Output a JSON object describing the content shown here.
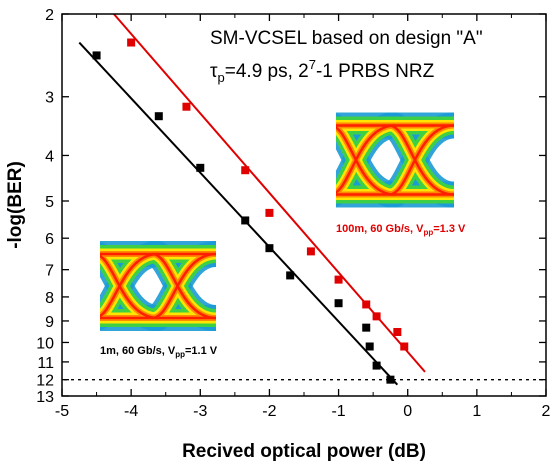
{
  "chart_data": {
    "type": "scatter",
    "title": "",
    "xlabel": "Recived optical power (dB)",
    "ylabel": "-log(BER)",
    "xlim": [
      -5,
      2
    ],
    "ylim": [
      2,
      13
    ],
    "y_scale": "log10(-log10(BER)) axis, inverted",
    "x_ticks": [
      -5,
      -4,
      -3,
      -2,
      -1,
      0,
      1,
      2
    ],
    "y_ticks": [
      2,
      3,
      4,
      5,
      6,
      7,
      8,
      9,
      10,
      11,
      12,
      13
    ],
    "grid": false,
    "reference_line": {
      "y": 12,
      "style": "dotted"
    },
    "annotations": {
      "line1": "SM-VCSEL based on design \"A\"",
      "line2_tau": "τ",
      "line2_tau_sub": "p",
      "line2_rest_a": "=4.9 ps, 2",
      "line2_sup": "7",
      "line2_rest_b": "-1 PRBS NRZ"
    },
    "series": [
      {
        "color": "#000000",
        "marker": "square",
        "points": [
          {
            "x": -4.5,
            "y": 2.45
          },
          {
            "x": -3.6,
            "y": 3.3
          },
          {
            "x": -3.0,
            "y": 4.25
          },
          {
            "x": -2.35,
            "y": 5.5
          },
          {
            "x": -2.0,
            "y": 6.3
          },
          {
            "x": -1.7,
            "y": 7.2
          },
          {
            "x": -1.0,
            "y": 8.25
          },
          {
            "x": -0.6,
            "y": 9.3
          },
          {
            "x": -0.55,
            "y": 10.2
          },
          {
            "x": -0.45,
            "y": 11.2
          },
          {
            "x": -0.25,
            "y": 12.0
          }
        ],
        "fit_line": {
          "x1": -4.75,
          "y1": 2.3,
          "x2": -0.15,
          "y2": 12.3
        },
        "eye_label": {
          "text_a": "1m, 60 Gb/s, V",
          "sub": "pp",
          "text_b": "=1.1 V"
        }
      },
      {
        "color": "#e00000",
        "marker": "square",
        "points": [
          {
            "x": -4.0,
            "y": 2.3
          },
          {
            "x": -3.2,
            "y": 3.15
          },
          {
            "x": -2.35,
            "y": 4.3
          },
          {
            "x": -2.0,
            "y": 5.3
          },
          {
            "x": -1.4,
            "y": 6.4
          },
          {
            "x": -1.0,
            "y": 7.35
          },
          {
            "x": -0.6,
            "y": 8.3
          },
          {
            "x": -0.45,
            "y": 8.8
          },
          {
            "x": -0.15,
            "y": 9.5
          },
          {
            "x": -0.05,
            "y": 10.2
          }
        ],
        "fit_line": {
          "x1": -4.25,
          "y1": 2.0,
          "x2": 0.25,
          "y2": 11.55
        },
        "eye_label": {
          "text_a": "100m, 60 Gb/s, V",
          "sub": "pp",
          "text_b": "=1.3 V"
        }
      }
    ]
  }
}
